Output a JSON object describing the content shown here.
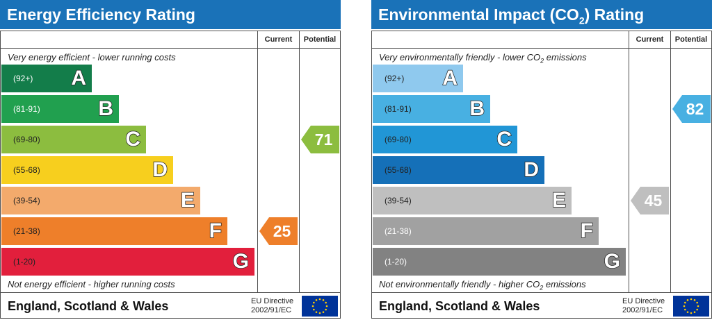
{
  "chart_data": [
    {
      "type": "bar",
      "title": "Energy Efficiency Rating",
      "columns": [
        "Current",
        "Potential"
      ],
      "top_note": "Very energy efficient - lower running costs",
      "bottom_note": "Not energy efficient - higher running costs",
      "bands": [
        {
          "letter": "A",
          "range": "(92+)",
          "color": "#137d4a",
          "dark_text": true
        },
        {
          "letter": "B",
          "range": "(81-91)",
          "color": "#21a04f",
          "dark_text": true
        },
        {
          "letter": "C",
          "range": "(69-80)",
          "color": "#8cbd3f",
          "dark_text": false
        },
        {
          "letter": "D",
          "range": "(55-68)",
          "color": "#f7cf1e",
          "dark_text": false
        },
        {
          "letter": "E",
          "range": "(39-54)",
          "color": "#f3aa6c",
          "dark_text": false
        },
        {
          "letter": "F",
          "range": "(21-38)",
          "color": "#ee7f2a",
          "dark_text": false
        },
        {
          "letter": "G",
          "range": "(1-20)",
          "color": "#e21f3c",
          "dark_text": false
        }
      ],
      "current": {
        "value": 25,
        "band": "F",
        "color": "#ee7f2a"
      },
      "potential": {
        "value": 71,
        "band": "C",
        "color": "#8cbd3f"
      },
      "footer": {
        "country": "England, Scotland & Wales",
        "directive_line1": "EU Directive",
        "directive_line2": "2002/91/EC"
      }
    },
    {
      "type": "bar",
      "title": "Environmental Impact (CO",
      "title_sub": "2",
      "title_end": ") Rating",
      "columns": [
        "Current",
        "Potential"
      ],
      "top_note": "Very environmentally friendly - lower CO",
      "top_note_sub": "2",
      "top_note_end": " emissions",
      "bottom_note": "Not environmentally friendly - higher CO",
      "bottom_note_sub": "2",
      "bottom_note_end": " emissions",
      "bands": [
        {
          "letter": "A",
          "range": "(92+)",
          "color": "#8fc9ee",
          "dark_text": false
        },
        {
          "letter": "B",
          "range": "(81-91)",
          "color": "#48b0e2",
          "dark_text": false
        },
        {
          "letter": "C",
          "range": "(69-80)",
          "color": "#2196d6",
          "dark_text": false
        },
        {
          "letter": "D",
          "range": "(55-68)",
          "color": "#1570b8",
          "dark_text": false
        },
        {
          "letter": "E",
          "range": "(39-54)",
          "color": "#bfbfbf",
          "dark_text": false
        },
        {
          "letter": "F",
          "range": "(21-38)",
          "color": "#a1a1a1",
          "dark_text": true
        },
        {
          "letter": "G",
          "range": "(1-20)",
          "color": "#828282",
          "dark_text": true
        }
      ],
      "current": {
        "value": 45,
        "band": "E",
        "color": "#bfbfbf"
      },
      "potential": {
        "value": 82,
        "band": "B",
        "color": "#48b0e2"
      },
      "footer": {
        "country": "England, Scotland & Wales",
        "directive_line1": "EU Directive",
        "directive_line2": "2002/91/EC"
      }
    }
  ]
}
